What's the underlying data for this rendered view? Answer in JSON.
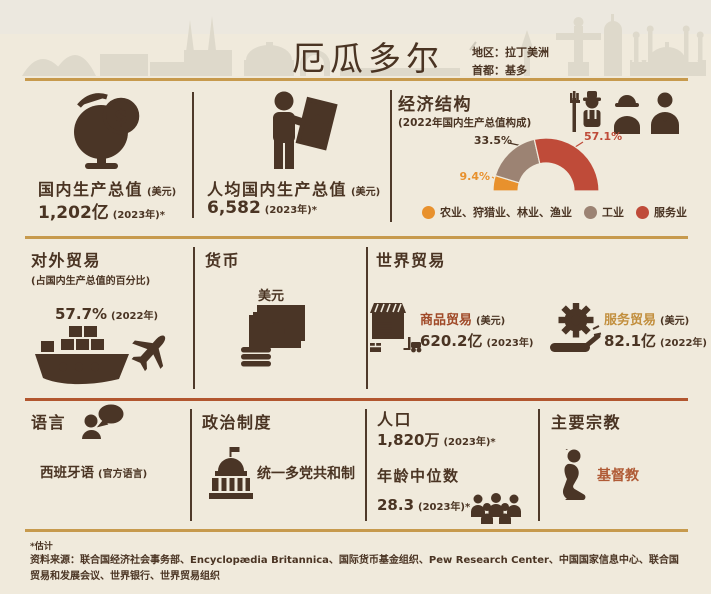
{
  "header": {
    "title": "厄瓜多尔",
    "region": "地区：拉丁美洲",
    "capital": "首都：基多"
  },
  "gdp": {
    "title": "国内生产总值",
    "unit": "(美元)",
    "value": "1,202亿",
    "year": "(2023年)*"
  },
  "gdp_per_capita": {
    "title": "人均国内生产总值",
    "unit": "(美元)",
    "value": "6,582",
    "year": "(2023年)*"
  },
  "economy": {
    "title": "经济结构",
    "subtitle": "(2022年国内生产总值构成)"
  },
  "chart_data": {
    "type": "pie",
    "variant": "half-donut",
    "title": "经济结构",
    "subtitle": "(2022年国内生产总值构成)",
    "categories": [
      "农业、狩猎业、林业、渔业",
      "工业",
      "服务业"
    ],
    "values": [
      9.4,
      33.5,
      57.1
    ],
    "labels": [
      "9.4%",
      "33.5%",
      "57.1%"
    ],
    "colors": [
      "#E8912D",
      "#9C8373",
      "#BF4B39"
    ],
    "legend_position": "bottom",
    "start_angle_deg": 180,
    "end_angle_deg": 0
  },
  "foreign_trade": {
    "title": "对外贸易",
    "subtitle": "(占国内生产总值的百分比)",
    "value": "57.7%",
    "year": "(2022年)"
  },
  "currency": {
    "title": "货币",
    "value": "美元"
  },
  "world_trade": {
    "title": "世界贸易",
    "goods": {
      "label": "商品贸易",
      "unit": "(美元)",
      "value": "620.2亿",
      "year": "(2023年)"
    },
    "services": {
      "label": "服务贸易",
      "unit": "(美元)",
      "value": "82.1亿",
      "year": "(2022年)"
    }
  },
  "language": {
    "title": "语言",
    "value": "西班牙语",
    "note": "(官方语言)"
  },
  "political_system": {
    "title": "政治制度",
    "value": "统一多党共和制"
  },
  "population": {
    "title": "人口",
    "value": "1,820万",
    "year": "(2023年)*",
    "median_age_label": "年龄中位数",
    "median_age_value": "28.3",
    "median_age_year": "(2023年)*"
  },
  "religion": {
    "title": "主要宗教",
    "value": "基督教"
  },
  "footer": {
    "note": "*估计",
    "sources": "资料来源：联合国经济社会事务部、Encyclopædia Britannica、国际货币基金组织、Pew Research Center、中国国家信息中心、联合国贸易和发展会议、世界银行、世界贸易组织"
  },
  "icons": {
    "dollar_glyph": "$",
    "names": [
      "globe-dollar-icon",
      "person-banknote-icon",
      "farmer-icon",
      "worker-icon",
      "waiter-icon",
      "ship-icon",
      "plane-icon",
      "banknotes-icon",
      "warehouse-icon",
      "gear-hand-icon",
      "speech-person-icon",
      "capitol-icon",
      "people-group-icon",
      "praying-person-icon"
    ]
  },
  "colors": {
    "background": "#F0EADC",
    "dark_brown": "#4A3526",
    "gold_line": "#C79A4D",
    "rust_line": "#B2562F",
    "goods_accent": "#A04A28",
    "services_accent": "#C28F3E",
    "religion_accent": "#B05B36",
    "skyline": "#DED9CB"
  }
}
